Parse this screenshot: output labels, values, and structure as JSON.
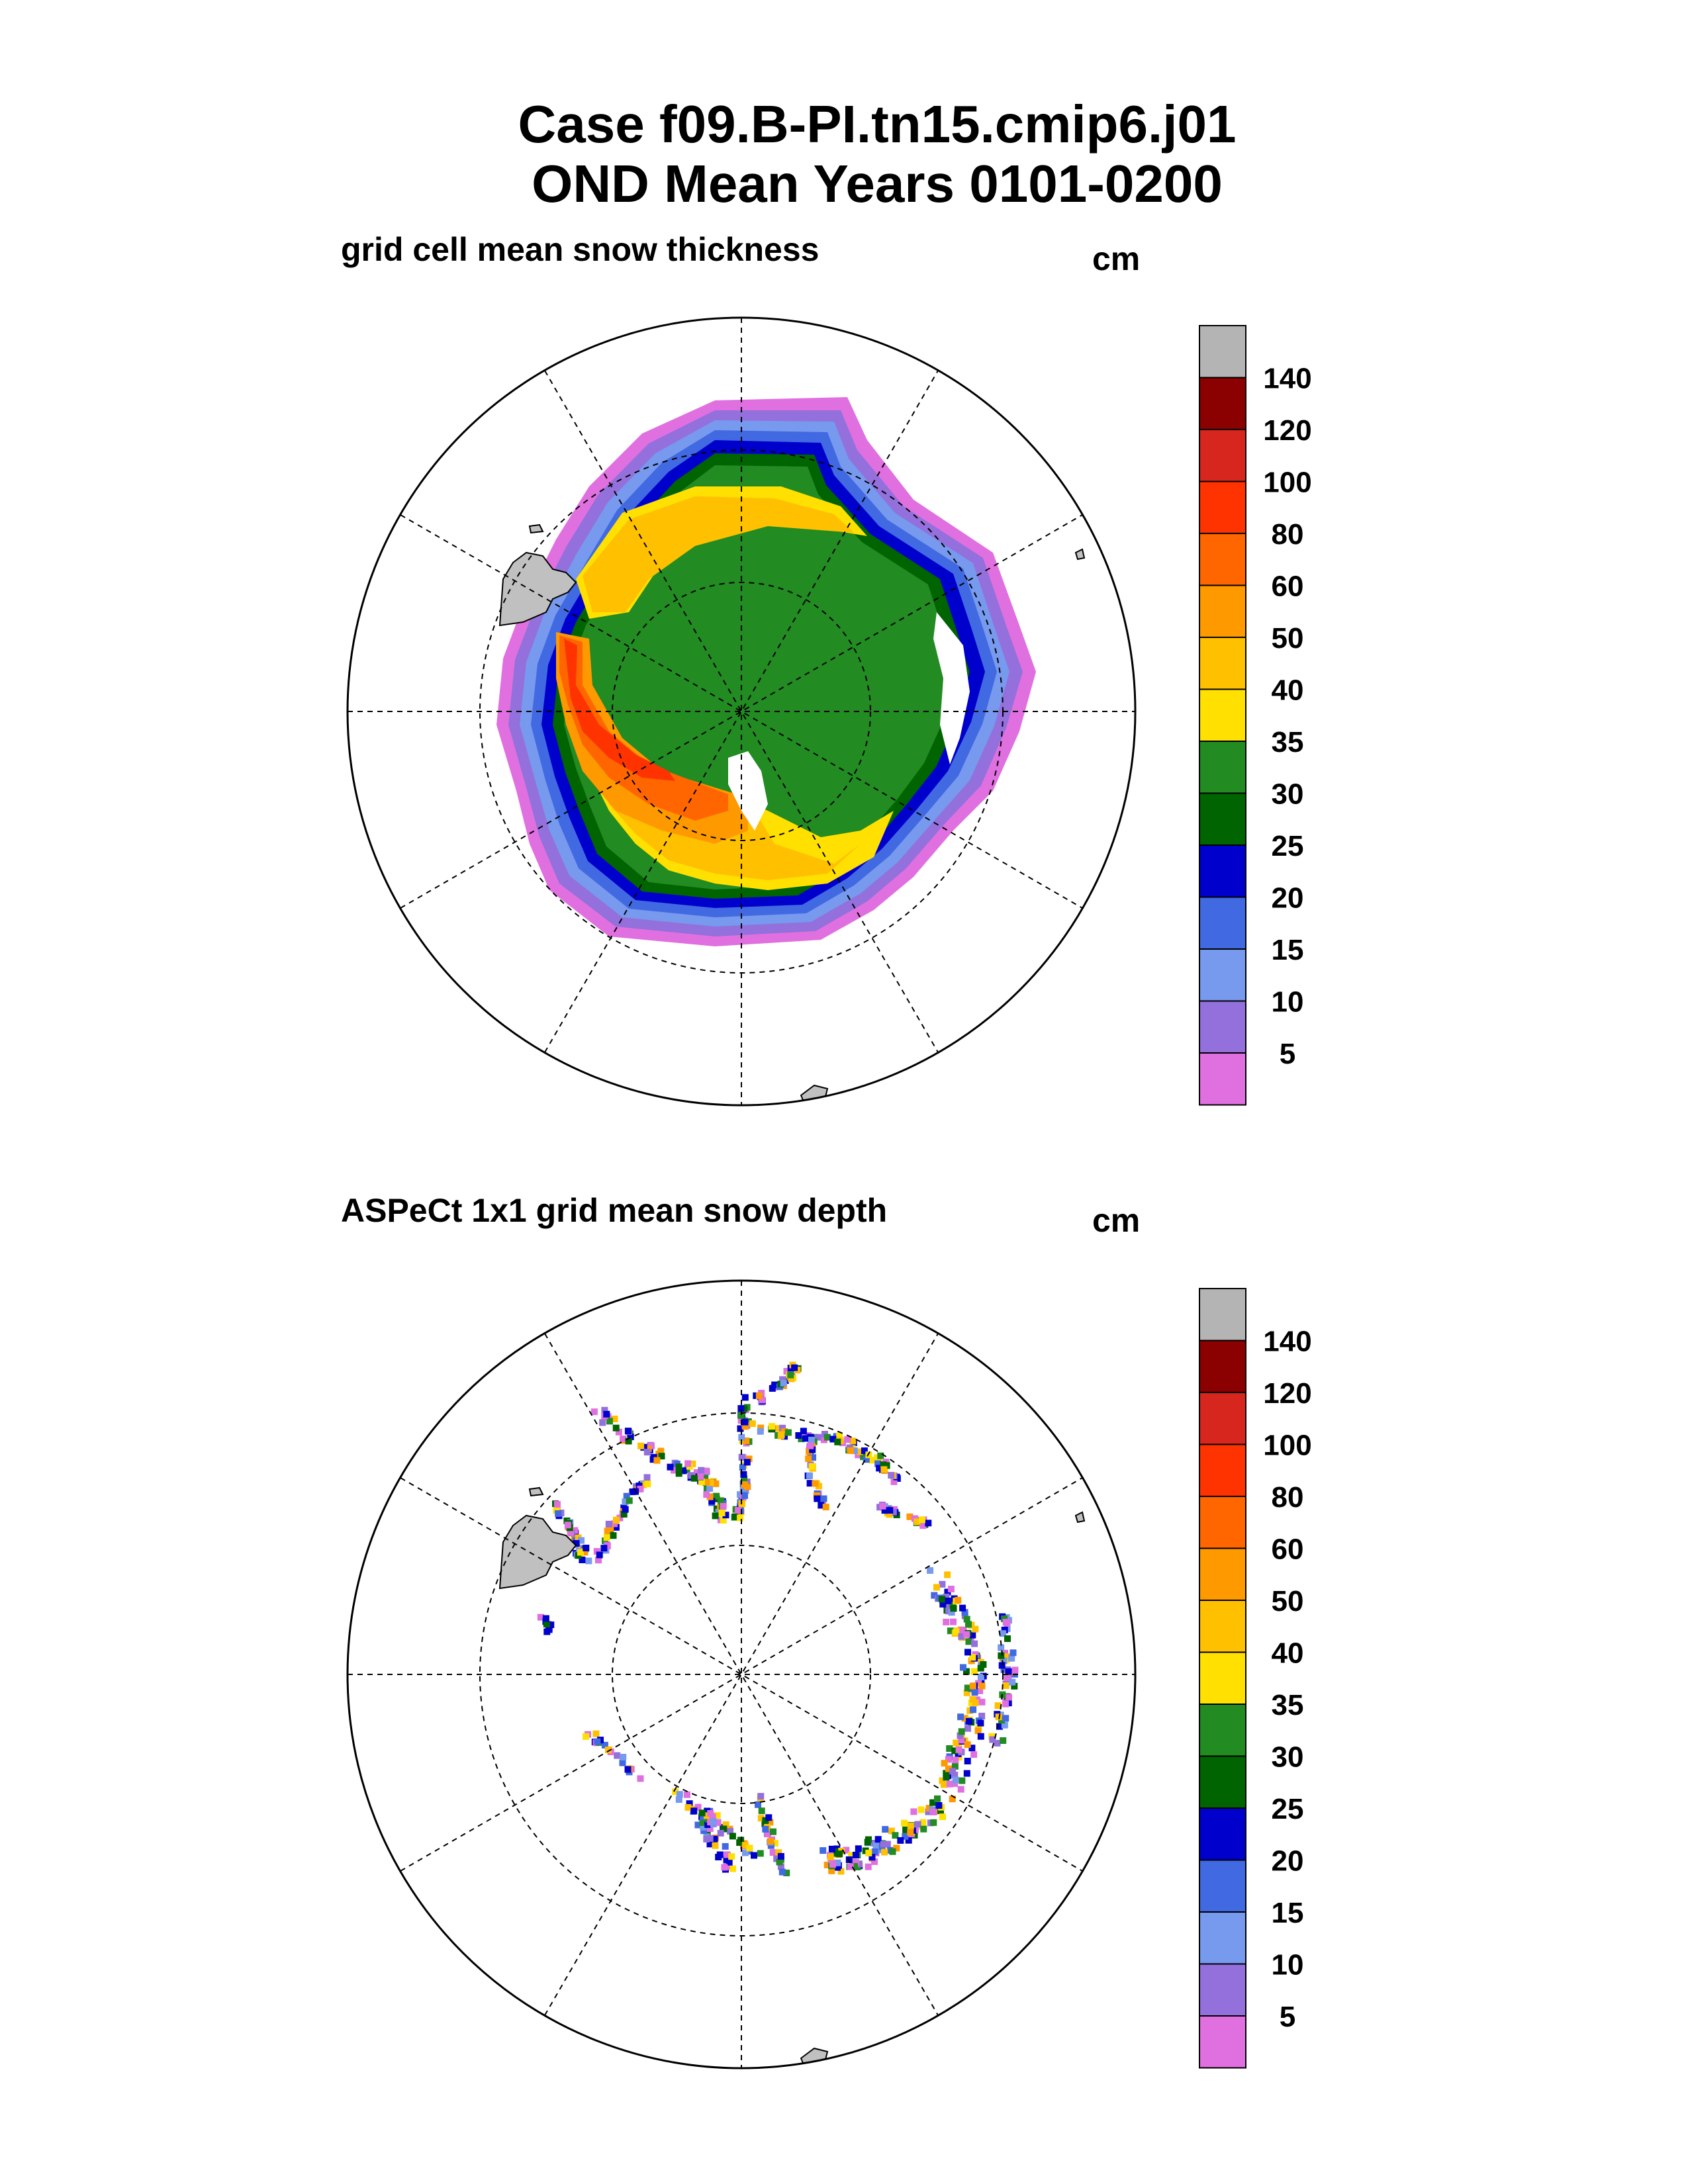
{
  "title": {
    "line1": "Case f09.B-PI.tn15.cmip6.j01",
    "line2": "OND Mean    Years 0101-0200"
  },
  "panels": [
    {
      "label": "grid cell mean snow thickness",
      "units": "cm"
    },
    {
      "label": "ASPeCt 1x1 grid mean snow depth",
      "units": "cm"
    }
  ],
  "colorbar": {
    "labels": [
      "140",
      "120",
      "100",
      "80",
      "60",
      "50",
      "40",
      "35",
      "30",
      "25",
      "20",
      "15",
      "10",
      "5"
    ],
    "colors": [
      "#b4b4b4",
      "#8b0000",
      "#d7261e",
      "#ff3300",
      "#ff6600",
      "#ff9900",
      "#ffc000",
      "#ffe000",
      "#228b22",
      "#006400",
      "#0000cd",
      "#4169e1",
      "#7799ee",
      "#9370db",
      "#e070e0"
    ]
  },
  "colors": {
    "land": "#c0c0c0",
    "frame": "#000000",
    "grid": "#000000"
  }
}
